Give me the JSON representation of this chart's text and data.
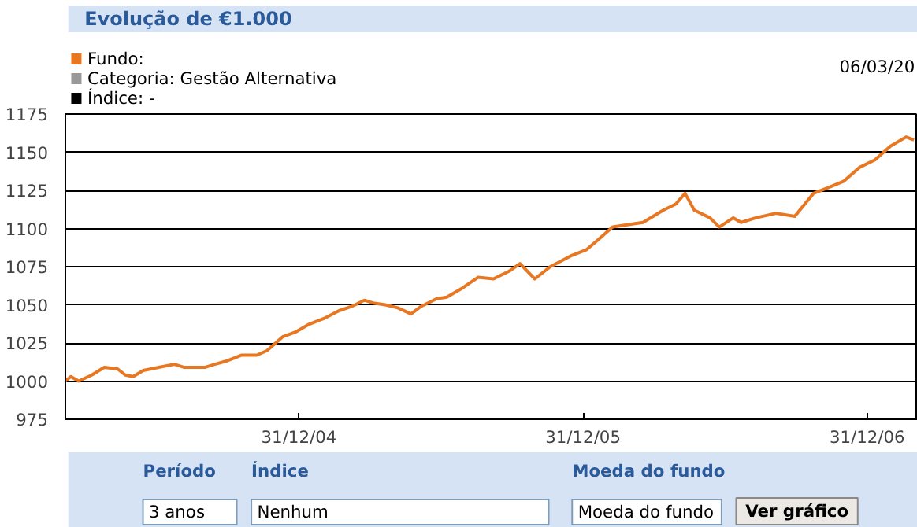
{
  "chart_data": {
    "type": "line",
    "title": "Evolução de €1.000",
    "x": [
      "2004-03-06",
      "2004-03-13",
      "2004-03-23",
      "2004-04-09",
      "2004-04-25",
      "2004-05-12",
      "2004-05-22",
      "2004-06-01",
      "2004-06-14",
      "2004-07-04",
      "2004-07-24",
      "2004-08-06",
      "2004-09-01",
      "2004-09-14",
      "2004-09-28",
      "2004-10-18",
      "2004-11-07",
      "2004-11-20",
      "2004-12-10",
      "2004-12-26",
      "2005-01-12",
      "2005-02-01",
      "2005-02-20",
      "2005-03-09",
      "2005-03-25",
      "2005-04-07",
      "2005-04-21",
      "2005-05-07",
      "2005-05-24",
      "2005-06-06",
      "2005-06-26",
      "2005-07-09",
      "2005-07-29",
      "2005-08-18",
      "2005-09-07",
      "2005-09-27",
      "2005-10-11",
      "2005-10-30",
      "2005-11-19",
      "2005-12-15",
      "2006-01-04",
      "2006-01-18",
      "2006-02-07",
      "2006-03-18",
      "2006-04-13",
      "2006-04-29",
      "2006-05-11",
      "2006-05-23",
      "2006-06-12",
      "2006-06-24",
      "2006-07-12",
      "2006-07-22",
      "2006-08-10",
      "2006-09-05",
      "2006-09-29",
      "2006-10-23",
      "2006-11-12",
      "2006-12-01",
      "2006-12-21",
      "2007-01-10",
      "2007-01-30",
      "2007-02-19",
      "2007-03-01"
    ],
    "series": [
      {
        "name": "Fundo:",
        "color": "#e87722",
        "values": [
          1000,
          1003,
          1000,
          1004,
          1009,
          1008,
          1004,
          1003,
          1007,
          1009,
          1011,
          1009,
          1009,
          1011,
          1013,
          1017,
          1017,
          1020,
          1029,
          1032,
          1037,
          1041,
          1046,
          1049,
          1053,
          1051,
          1050,
          1048,
          1044,
          1049,
          1054,
          1055,
          1061,
          1068,
          1067,
          1072,
          1077,
          1067,
          1075,
          1082,
          1086,
          1092,
          1101,
          1104,
          1112,
          1116,
          1123,
          1112,
          1107,
          1101,
          1107,
          1104,
          1107,
          1110,
          1108,
          1123,
          1127,
          1131,
          1140,
          1145,
          1154,
          1160,
          1158
        ]
      },
      {
        "name": "Categoria: Gestão Alternativa",
        "color": "#999999",
        "values": [
          null,
          null,
          null,
          null,
          null,
          null,
          null,
          null,
          null,
          null,
          null,
          null,
          null,
          null,
          null,
          null,
          null,
          null,
          null,
          null,
          null,
          null,
          null,
          null,
          null,
          null,
          null,
          null,
          null,
          null,
          null,
          null,
          null,
          null,
          null,
          null,
          null,
          null,
          null,
          null,
          null,
          null,
          null,
          null,
          null,
          null,
          null,
          null,
          null,
          null,
          null,
          null,
          null,
          null,
          null,
          null,
          null,
          null,
          null,
          null,
          null,
          null,
          null
        ]
      },
      {
        "name": "Índice: -",
        "color": "#000000",
        "values": [
          null,
          null,
          null,
          null,
          null,
          null,
          null,
          null,
          null,
          null,
          null,
          null,
          null,
          null,
          null,
          null,
          null,
          null,
          null,
          null,
          null,
          null,
          null,
          null,
          null,
          null,
          null,
          null,
          null,
          null,
          null,
          null,
          null,
          null,
          null,
          null,
          null,
          null,
          null,
          null,
          null,
          null,
          null,
          null,
          null,
          null,
          null,
          null,
          null,
          null,
          null,
          null,
          null,
          null,
          null,
          null,
          null,
          null,
          null,
          null,
          null,
          null,
          null
        ]
      }
    ],
    "xlim": [
      "2004-03-06",
      "2007-03-06"
    ],
    "xticks": [
      {
        "value": "2004-12-31",
        "label": "31/12/04"
      },
      {
        "value": "2005-12-31",
        "label": "31/12/05"
      },
      {
        "value": "2006-12-31",
        "label": "31/12/06"
      }
    ],
    "ylim": [
      975,
      1175
    ],
    "yticks": [
      975,
      1000,
      1025,
      1050,
      1075,
      1100,
      1125,
      1150,
      1175
    ],
    "grid": "y",
    "legend": "top left",
    "annotations": [
      "06/03/20",
      "Período",
      "3 anos",
      "Índice",
      "Nenhum",
      "Moeda do fundo",
      "Moeda do fundo",
      "Ver gráfico"
    ]
  }
}
